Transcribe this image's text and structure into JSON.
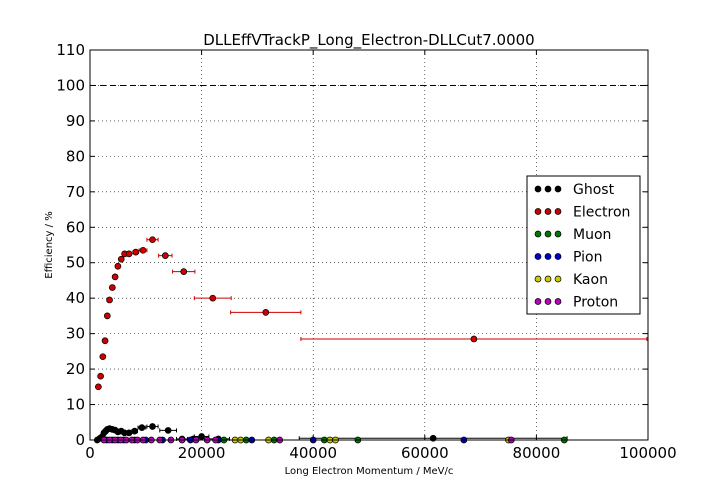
{
  "chart_data": {
    "type": "scatter",
    "title": "DLLEffVTrackP_Long_Electron-DLLCut7.0000",
    "xlabel": "Long Electron Momentum / MeV/c",
    "ylabel": "Efficiency / %",
    "xlim": [
      0,
      100000
    ],
    "ylim": [
      0,
      110
    ],
    "xticks": [
      "0",
      "20000",
      "40000",
      "60000",
      "80000",
      "100000"
    ],
    "yticks": [
      "0",
      "10",
      "20",
      "30",
      "40",
      "50",
      "60",
      "70",
      "80",
      "90",
      "100",
      "110"
    ],
    "grid": true,
    "reference_line_y": 100,
    "legend_position": "right",
    "series": [
      {
        "name": "Ghost",
        "color": "#000000",
        "points": [
          [
            1300,
            0,
            300
          ],
          [
            1800,
            0.5,
            300
          ],
          [
            2200,
            1.0,
            200
          ],
          [
            2500,
            2.0,
            200
          ],
          [
            2800,
            2.5,
            200
          ],
          [
            3100,
            3.0,
            200
          ],
          [
            3500,
            3.2,
            250
          ],
          [
            4000,
            3.0,
            250
          ],
          [
            4500,
            2.8,
            250
          ],
          [
            5000,
            2.3,
            300
          ],
          [
            5600,
            2.5,
            300
          ],
          [
            6200,
            2.0,
            350
          ],
          [
            7000,
            2.0,
            400
          ],
          [
            8000,
            2.5,
            500
          ],
          [
            9300,
            3.5,
            700
          ],
          [
            11200,
            3.8,
            1000
          ],
          [
            14000,
            2.7,
            1500
          ],
          [
            16500,
            0.3,
            1000
          ],
          [
            18500,
            0.3,
            1000
          ],
          [
            20000,
            1.0,
            1300
          ],
          [
            23000,
            0.3,
            2000
          ],
          [
            61500,
            0.5,
            24000
          ]
        ]
      },
      {
        "name": "Electron",
        "color": "#cc0000",
        "points": [
          [
            1500,
            15,
            300
          ],
          [
            1900,
            18,
            200
          ],
          [
            2300,
            23.5,
            200
          ],
          [
            2700,
            28,
            200
          ],
          [
            3100,
            35,
            200
          ],
          [
            3500,
            39.5,
            250
          ],
          [
            4000,
            43,
            250
          ],
          [
            4500,
            46,
            250
          ],
          [
            5000,
            49,
            300
          ],
          [
            5600,
            51,
            300
          ],
          [
            6200,
            52.5,
            350
          ],
          [
            7000,
            52.5,
            400
          ],
          [
            8200,
            53,
            500
          ],
          [
            9500,
            53.5,
            700
          ],
          [
            11200,
            56.5,
            1000
          ],
          [
            13500,
            52,
            1200
          ],
          [
            16800,
            47.5,
            2000
          ],
          [
            22000,
            40,
            3300
          ],
          [
            31500,
            36,
            6300
          ],
          [
            68800,
            28.5,
            31000
          ]
        ]
      },
      {
        "name": "Muon",
        "color": "#007700",
        "points": [
          [
            24000,
            0,
            0
          ],
          [
            28000,
            0,
            0
          ],
          [
            33000,
            0,
            0
          ],
          [
            42000,
            0,
            0
          ],
          [
            48000,
            0,
            0
          ],
          [
            85000,
            0,
            0
          ]
        ]
      },
      {
        "name": "Pion",
        "color": "#0000cc",
        "points": [
          [
            3000,
            0,
            0
          ],
          [
            4000,
            0,
            0
          ],
          [
            5000,
            0,
            0
          ],
          [
            6000,
            0,
            0
          ],
          [
            8000,
            0,
            0
          ],
          [
            10000,
            0,
            0
          ],
          [
            13000,
            0,
            0
          ],
          [
            18000,
            0,
            0
          ],
          [
            23000,
            0,
            0
          ],
          [
            29000,
            0,
            0
          ],
          [
            40000,
            0,
            0
          ],
          [
            67000,
            0,
            0
          ]
        ]
      },
      {
        "name": "Kaon",
        "color": "#cccc00",
        "points": [
          [
            26000,
            0,
            0
          ],
          [
            27000,
            0,
            0
          ],
          [
            32000,
            0,
            0
          ],
          [
            43000,
            0,
            0
          ],
          [
            44000,
            0,
            0
          ],
          [
            75000,
            0,
            0
          ]
        ]
      },
      {
        "name": "Proton",
        "color": "#bb00bb",
        "points": [
          [
            2500,
            0,
            0
          ],
          [
            3500,
            0,
            0
          ],
          [
            4500,
            0,
            0
          ],
          [
            5500,
            0,
            0
          ],
          [
            6500,
            0,
            0
          ],
          [
            7500,
            0,
            0
          ],
          [
            8500,
            0,
            0
          ],
          [
            9500,
            0,
            0
          ],
          [
            11000,
            0,
            0
          ],
          [
            12500,
            0,
            0
          ],
          [
            14500,
            0,
            0
          ],
          [
            16500,
            0,
            0
          ],
          [
            19000,
            0,
            0
          ],
          [
            21000,
            0,
            0
          ],
          [
            22500,
            0,
            0
          ],
          [
            34000,
            0,
            0
          ],
          [
            75500,
            0,
            0
          ]
        ]
      }
    ]
  }
}
